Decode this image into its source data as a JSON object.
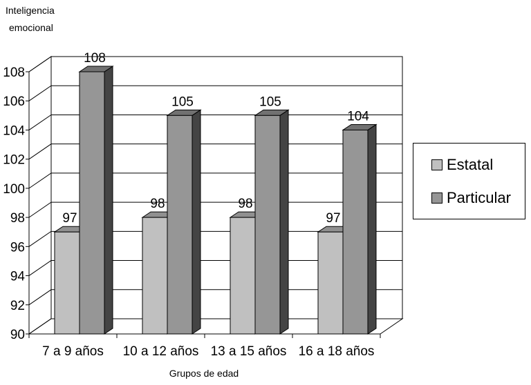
{
  "chart_data": {
    "type": "bar",
    "title": "",
    "ylabel": "Inteligencia emocional",
    "ylabel_lines": [
      "Inteligencia",
      "emocional"
    ],
    "xlabel": "Grupos de edad",
    "categories": [
      "7 a 9 años",
      "10 a 12 años",
      "13 a 15 años",
      "16 a 18 años"
    ],
    "series": [
      {
        "name": "Estatal",
        "values": [
          97,
          98,
          98,
          97
        ],
        "color": "#c0c0c0"
      },
      {
        "name": "Particular",
        "values": [
          108,
          105,
          105,
          104
        ],
        "color": "#969696"
      }
    ],
    "ylim": [
      90,
      108
    ],
    "yticks": [
      90,
      92,
      94,
      96,
      98,
      100,
      102,
      104,
      106,
      108
    ],
    "grid": true,
    "legend_position": "right",
    "three_d": true
  }
}
